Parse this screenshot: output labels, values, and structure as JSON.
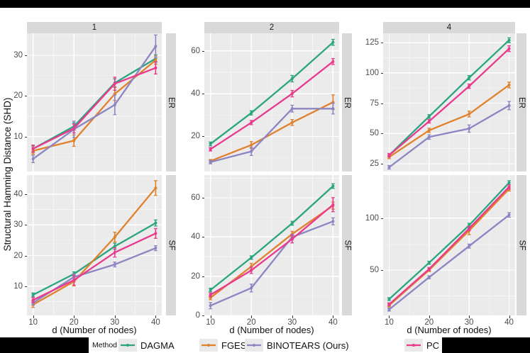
{
  "style": {
    "panel_bg": "#EBEBEB",
    "strip_bg": "#D9D9D9",
    "grid_major": "#FFFFFF",
    "grid_minor": "#F6F6F6",
    "tick_text": "#4D4D4D",
    "tick_mark": "#333333",
    "legend_key_bg": "#E9E9E9"
  },
  "chart_data": {
    "type": "line",
    "title": "",
    "ylabel": "Structural Hamming Distance (SHD)",
    "xlabel": "d (Number of nodes)",
    "legend_title": "Method",
    "legend_position": "bottom",
    "grid": true,
    "x": [
      10,
      20,
      30,
      40
    ],
    "x_ticks": [
      "10",
      "20",
      "30",
      "40"
    ],
    "xlim": [
      8.5,
      41.5
    ],
    "facet_cols": [
      "1",
      "2",
      "4"
    ],
    "facet_rows": [
      "ER",
      "SF"
    ],
    "methods": [
      {
        "name": "DAGMA",
        "color": "#2aa57f"
      },
      {
        "name": "FGES",
        "color": "#e0812c"
      },
      {
        "name": "BINOTEARS (Ours)",
        "color": "#8b86c2"
      },
      {
        "name": "PC",
        "color": "#e93a8e"
      }
    ],
    "panels": [
      {
        "col": "1",
        "row": "ER",
        "ylim": [
          1.4,
          35.4
        ],
        "y_ticks": [
          10,
          20,
          30
        ],
        "series": [
          {
            "name": "DAGMA",
            "y": [
              7.0,
              12.5,
              23.2,
              29.2
            ],
            "err": [
              0.7,
              0.9,
              1.0,
              0.9
            ]
          },
          {
            "name": "FGES",
            "y": [
              6.5,
              9.0,
              20.5,
              28.8
            ],
            "err": [
              0.8,
              1.4,
              1.6,
              1.0
            ]
          },
          {
            "name": "BINOTEARS (Ours)",
            "y": [
              4.5,
              11.8,
              17.8,
              32.2
            ],
            "err": [
              0.9,
              2.0,
              2.4,
              2.8
            ]
          },
          {
            "name": "PC",
            "y": [
              7.0,
              12.0,
              23.0,
              26.9
            ],
            "err": [
              0.9,
              1.1,
              1.6,
              1.5
            ]
          }
        ]
      },
      {
        "col": "1",
        "row": "SF",
        "ylim": [
          0.5,
          46.2
        ],
        "y_ticks": [
          10,
          20,
          30,
          40
        ],
        "series": [
          {
            "name": "DAGMA",
            "y": [
              7.2,
              14.0,
              23.0,
              30.6
            ],
            "err": [
              0.6,
              0.7,
              1.0,
              1.0
            ]
          },
          {
            "name": "FGES",
            "y": [
              4.0,
              11.5,
              26.0,
              42.0
            ],
            "err": [
              0.9,
              1.4,
              1.6,
              2.4
            ]
          },
          {
            "name": "BINOTEARS (Ours)",
            "y": [
              4.6,
              13.0,
              17.1,
              22.4
            ],
            "err": [
              0.7,
              1.0,
              0.8,
              0.8
            ]
          },
          {
            "name": "PC",
            "y": [
              5.5,
              12.0,
              21.0,
              27.2
            ],
            "err": [
              0.8,
              1.6,
              1.5,
              1.6
            ]
          }
        ]
      },
      {
        "col": "2",
        "row": "ER",
        "ylim": [
          3.6,
          68.2
        ],
        "y_ticks": [
          20,
          40,
          60
        ],
        "series": [
          {
            "name": "DAGMA",
            "y": [
              16.5,
              31.0,
              47.0,
              64.0
            ],
            "err": [
              0.9,
              1.0,
              1.5,
              1.4
            ]
          },
          {
            "name": "FGES",
            "y": [
              8.5,
              16.0,
              26.5,
              36.0
            ],
            "err": [
              0.7,
              1.6,
              1.4,
              3.4
            ]
          },
          {
            "name": "BINOTEARS (Ours)",
            "y": [
              8.0,
              13.0,
              33.0,
              33.0
            ],
            "err": [
              0.8,
              1.9,
              1.6,
              2.5
            ]
          },
          {
            "name": "PC",
            "y": [
              14.0,
              26.5,
              40.0,
              55.0
            ],
            "err": [
              0.8,
              1.0,
              1.5,
              1.4
            ]
          }
        ]
      },
      {
        "col": "2",
        "row": "SF",
        "ylim": [
          0,
          71.6
        ],
        "y_ticks": [
          0,
          20,
          40,
          60
        ],
        "series": [
          {
            "name": "DAGMA",
            "y": [
              13.0,
              29.5,
              47.0,
              66.0
            ],
            "err": [
              0.9,
              0.9,
              1.0,
              1.2
            ]
          },
          {
            "name": "FGES",
            "y": [
              9.0,
              25.0,
              41.5,
              56.0
            ],
            "err": [
              1.0,
              1.6,
              1.4,
              1.8
            ]
          },
          {
            "name": "BINOTEARS (Ours)",
            "y": [
              5.0,
              14.0,
              40.0,
              48.0
            ],
            "err": [
              1.6,
              2.0,
              1.4,
              1.8
            ]
          },
          {
            "name": "PC",
            "y": [
              10.5,
              23.0,
              39.0,
              56.5
            ],
            "err": [
              1.0,
              1.6,
              2.0,
              3.6
            ]
          }
        ]
      },
      {
        "col": "4",
        "row": "ER",
        "ylim": [
          18.5,
          132.7
        ],
        "y_ticks": [
          25,
          50,
          75,
          100,
          125
        ],
        "series": [
          {
            "name": "DAGMA",
            "y": [
              32.0,
              64.0,
              96.0,
              127.0
            ],
            "err": [
              1.4,
              1.5,
              1.8,
              2.0
            ]
          },
          {
            "name": "FGES",
            "y": [
              30.5,
              52.5,
              66.0,
              90.0
            ],
            "err": [
              1.4,
              1.8,
              2.4,
              2.4
            ]
          },
          {
            "name": "BINOTEARS (Ours)",
            "y": [
              22.0,
              47.0,
              54.0,
              73.0
            ],
            "err": [
              1.5,
              1.9,
              3.0,
              3.4
            ]
          },
          {
            "name": "PC",
            "y": [
              32.0,
              60.0,
              89.0,
              120.0
            ],
            "err": [
              1.4,
              1.5,
              1.8,
              2.4
            ]
          }
        ]
      },
      {
        "col": "4",
        "row": "SF",
        "ylim": [
          6.3,
          141.4
        ],
        "y_ticks": [
          50,
          100
        ],
        "series": [
          {
            "name": "DAGMA",
            "y": [
              22.0,
              57.0,
              93.0,
              134.0
            ],
            "err": [
              1.4,
              1.5,
              2.0,
              2.0
            ]
          },
          {
            "name": "FGES",
            "y": [
              16.0,
              50.0,
              88.0,
              128.0
            ],
            "err": [
              1.4,
              1.5,
              4.0,
              2.0
            ]
          },
          {
            "name": "BINOTEARS (Ours)",
            "y": [
              12.0,
              43.0,
              73.0,
              103.0
            ],
            "err": [
              1.5,
              1.5,
              2.0,
              2.2
            ]
          },
          {
            "name": "PC",
            "y": [
              17.0,
              51.0,
              90.0,
              130.0
            ],
            "err": [
              1.4,
              1.5,
              2.0,
              2.0
            ]
          }
        ]
      }
    ]
  }
}
